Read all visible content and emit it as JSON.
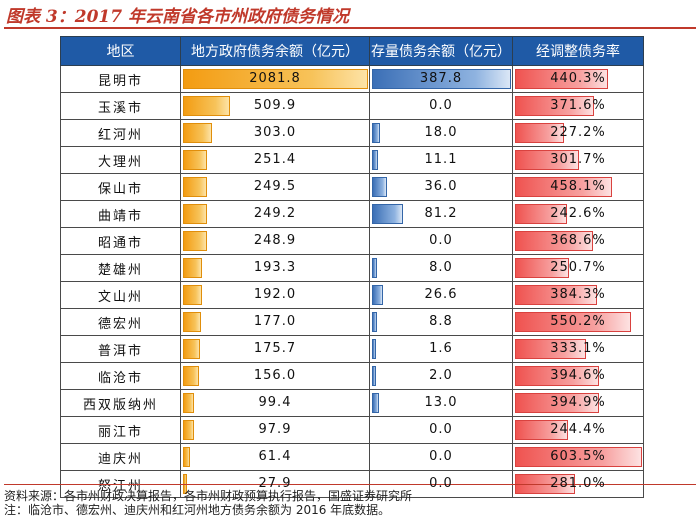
{
  "title": "图表 3：2017 年云南省各市州政府债务情况",
  "columns": [
    "地区",
    "地方政府债务余额（亿元）",
    "存量债务余额（亿元）",
    "经调整债务率"
  ],
  "colors": {
    "header": "#1f5aa6",
    "title": "#c0392b",
    "debt_bar": "#f39c12",
    "stock_bar": "#3b6fb6",
    "ratio_bar": "#ef5350"
  },
  "chart_data": {
    "type": "table",
    "title": "图表 3：2017 年云南省各市州政府债务情况",
    "columns": [
      "地区",
      "地方政府债务余额（亿元）",
      "存量债务余额（亿元）",
      "经调整债务率"
    ],
    "rows": [
      {
        "region": "昆明市",
        "debt": "2081.8",
        "stock": "387.8",
        "ratio": "440.3%"
      },
      {
        "region": "玉溪市",
        "debt": "509.9",
        "stock": "0.0",
        "ratio": "371.6%"
      },
      {
        "region": "红河州",
        "debt": "303.0",
        "stock": "18.0",
        "ratio": "227.2%"
      },
      {
        "region": "大理州",
        "debt": "251.4",
        "stock": "11.1",
        "ratio": "301.7%"
      },
      {
        "region": "保山市",
        "debt": "249.5",
        "stock": "36.0",
        "ratio": "458.1%"
      },
      {
        "region": "曲靖市",
        "debt": "249.2",
        "stock": "81.2",
        "ratio": "242.6%"
      },
      {
        "region": "昭通市",
        "debt": "248.9",
        "stock": "0.0",
        "ratio": "368.6%"
      },
      {
        "region": "楚雄州",
        "debt": "193.3",
        "stock": "8.0",
        "ratio": "250.7%"
      },
      {
        "region": "文山州",
        "debt": "192.0",
        "stock": "26.6",
        "ratio": "384.3%"
      },
      {
        "region": "德宏州",
        "debt": "177.0",
        "stock": "8.8",
        "ratio": "550.2%"
      },
      {
        "region": "普洱市",
        "debt": "175.7",
        "stock": "1.6",
        "ratio": "333.1%"
      },
      {
        "region": "临沧市",
        "debt": "156.0",
        "stock": "2.0",
        "ratio": "394.6%"
      },
      {
        "region": "西双版纳州",
        "debt": "99.4",
        "stock": "13.0",
        "ratio": "394.9%"
      },
      {
        "region": "丽江市",
        "debt": "97.9",
        "stock": "0.0",
        "ratio": "244.4%"
      },
      {
        "region": "迪庆州",
        "debt": "61.4",
        "stock": "0.0",
        "ratio": "603.5%"
      },
      {
        "region": "怒江州",
        "debt": "27.9",
        "stock": "0.0",
        "ratio": "281.0%"
      }
    ]
  },
  "footer": {
    "source": "资料来源：各市州财政决算报告，各市州财政预算执行报告，国盛证券研究所",
    "note": "注：临沧市、德宏州、迪庆州和红河州地方债务余额为 2016 年底数据。"
  }
}
